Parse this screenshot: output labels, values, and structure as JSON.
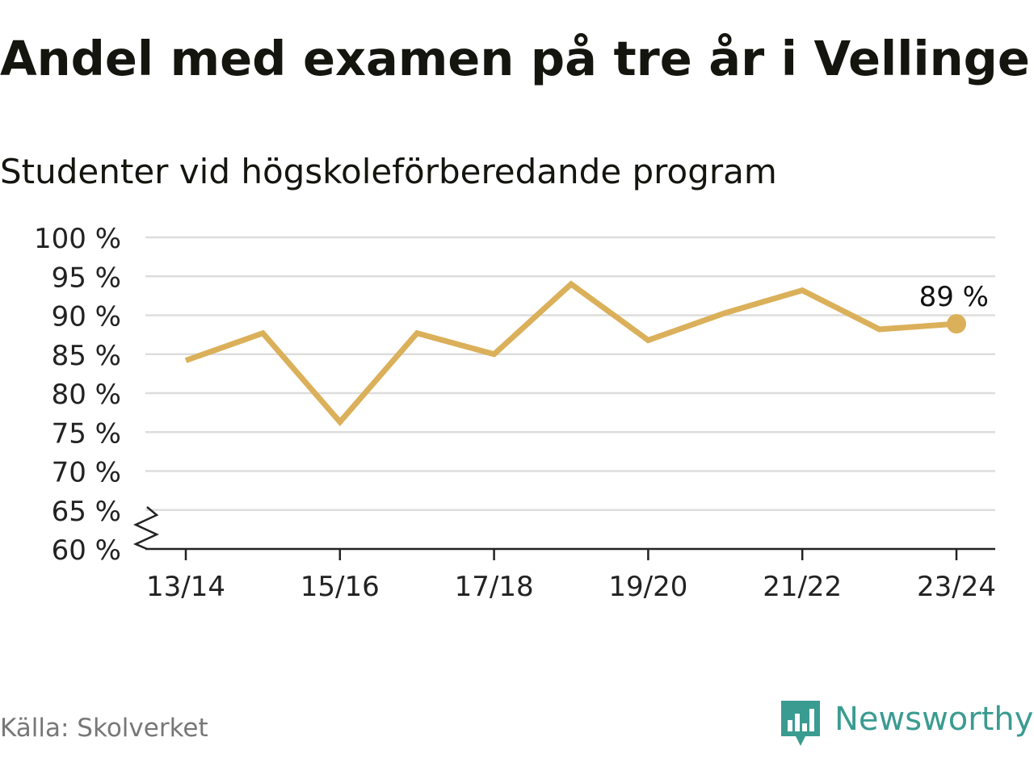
{
  "title": "Andel med examen på tre år i Vellinge",
  "subtitle": "Studenter vid högskoleförberedande program",
  "source": "Källa: Skolverket",
  "brand": {
    "name": "Newsworthy",
    "icon": "newsworthy-logo-icon",
    "color": "#3a9b91"
  },
  "chart_data": {
    "type": "line",
    "title": "Andel med examen på tre år i Vellinge",
    "subtitle": "Studenter vid högskoleförberedande program",
    "x": [
      "13/14",
      "14/15",
      "15/16",
      "16/17",
      "17/18",
      "18/19",
      "19/20",
      "20/21",
      "21/22",
      "22/23",
      "23/24"
    ],
    "x_tick_labels": [
      "13/14",
      "15/16",
      "17/18",
      "19/20",
      "21/22",
      "23/24"
    ],
    "series": [
      {
        "values": [
          84.2,
          87.7,
          76.3,
          87.7,
          85.0,
          94.0,
          86.8,
          90.3,
          93.2,
          88.2,
          88.9
        ],
        "color": "#dbb05a"
      }
    ],
    "ylim": [
      60,
      100
    ],
    "y_ticks": [
      60,
      65,
      70,
      75,
      80,
      85,
      90,
      95,
      100
    ],
    "y_tick_labels": [
      "60 %",
      "65 %",
      "70 %",
      "75 %",
      "80 %",
      "85 %",
      "90 %",
      "95 %",
      "100 %"
    ],
    "annotation": {
      "x": "23/24",
      "text": "89 %"
    },
    "grid": true,
    "axis_break": true,
    "legend": "none"
  }
}
